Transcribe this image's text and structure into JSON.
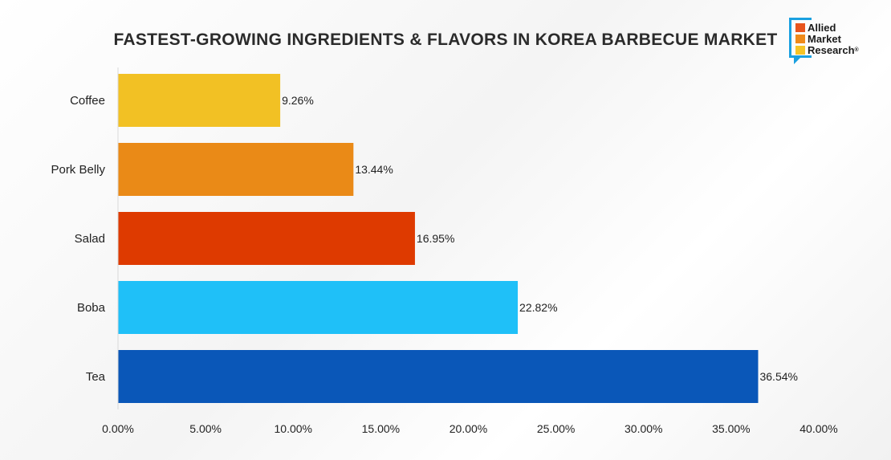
{
  "logo": {
    "lines": [
      "Allied",
      "Market",
      "Research"
    ],
    "mark": "®",
    "colors": [
      "#e8541c",
      "#ef8a1a",
      "#f5c426"
    ]
  },
  "chart_data": {
    "type": "bar",
    "orientation": "horizontal",
    "title": "FASTEST-GROWING INGREDIENTS & FLAVORS IN KOREA BARBECUE MARKET",
    "categories": [
      "Coffee",
      "Pork Belly",
      "Salad",
      "Boba",
      "Tea"
    ],
    "values": [
      9.26,
      13.44,
      16.95,
      22.82,
      36.54
    ],
    "data_labels": [
      "9.26%",
      "13.44%",
      "16.95%",
      "22.82%",
      "36.54%"
    ],
    "colors": [
      "#f2c124",
      "#ea8a17",
      "#de3a00",
      "#1fc0f8",
      "#0a57b8"
    ],
    "xlim": [
      0,
      40
    ],
    "xticks": [
      0,
      5,
      10,
      15,
      20,
      25,
      30,
      35,
      40
    ],
    "xtick_labels": [
      "0.00%",
      "5.00%",
      "10.00%",
      "15.00%",
      "20.00%",
      "25.00%",
      "30.00%",
      "35.00%",
      "40.00%"
    ],
    "xlabel": "",
    "ylabel": "",
    "grid": false,
    "legend": "none"
  }
}
